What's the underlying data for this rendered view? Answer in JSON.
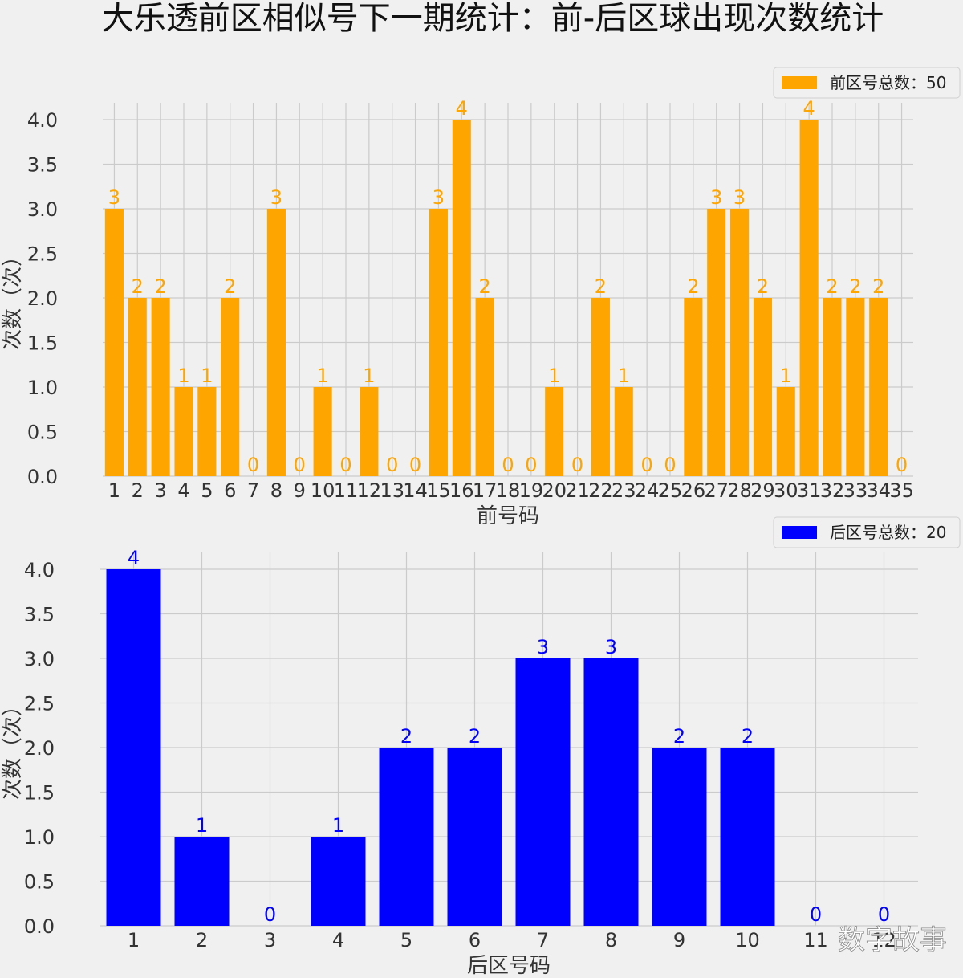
{
  "title": "大乐透前区相似号下一期统计：前-后区球出现次数统计",
  "watermark": "数字故事",
  "colors": {
    "front": "#ffa500",
    "back": "#0000ff",
    "grid": "#cbcbcb",
    "background": "#f0f0f0",
    "text": "#333333"
  },
  "chart_data": [
    {
      "type": "bar",
      "categories": [
        "1",
        "2",
        "3",
        "4",
        "5",
        "6",
        "7",
        "8",
        "9",
        "10",
        "11",
        "12",
        "13",
        "14",
        "15",
        "16",
        "17",
        "18",
        "19",
        "20",
        "21",
        "22",
        "23",
        "24",
        "25",
        "26",
        "27",
        "28",
        "29",
        "30",
        "31",
        "32",
        "33",
        "34",
        "35"
      ],
      "values": [
        3,
        2,
        2,
        1,
        1,
        2,
        0,
        3,
        0,
        1,
        0,
        1,
        0,
        0,
        3,
        4,
        2,
        0,
        0,
        1,
        0,
        2,
        1,
        0,
        0,
        2,
        3,
        3,
        2,
        1,
        4,
        2,
        2,
        2,
        0
      ],
      "data_labels": [
        "3",
        "2",
        "2",
        "1",
        "1",
        "2",
        "0",
        "3",
        "0",
        "1",
        "0",
        "1",
        "0",
        "0",
        "3",
        "4",
        "2",
        "0",
        "0",
        "1",
        "0",
        "2",
        "1",
        "0",
        "0",
        "2",
        "3",
        "3",
        "2",
        "1",
        "4",
        "2",
        "2",
        "2",
        "0"
      ],
      "xlabel": "前号码",
      "ylabel": "次数（次）",
      "ylim": [
        0,
        4
      ],
      "yticks": [
        "0.0",
        "0.5",
        "1.0",
        "1.5",
        "2.0",
        "2.5",
        "3.0",
        "3.5",
        "4.0"
      ],
      "legend": "前区号总数：50",
      "legend_position": "top-right",
      "grid": true,
      "color": "#ffa500"
    },
    {
      "type": "bar",
      "categories": [
        "1",
        "2",
        "3",
        "4",
        "5",
        "6",
        "7",
        "8",
        "9",
        "10",
        "11",
        "12"
      ],
      "values": [
        4,
        1,
        0,
        1,
        2,
        2,
        3,
        3,
        2,
        2,
        0,
        0
      ],
      "data_labels": [
        "4",
        "1",
        "0",
        "1",
        "2",
        "2",
        "3",
        "3",
        "2",
        "2",
        "0",
        "0"
      ],
      "xlabel": "后区号码",
      "ylabel": "次数（次）",
      "ylim": [
        0,
        4
      ],
      "yticks": [
        "0.0",
        "0.5",
        "1.0",
        "1.5",
        "2.0",
        "2.5",
        "3.0",
        "3.5",
        "4.0"
      ],
      "legend": "后区号总数：20",
      "legend_position": "top-right",
      "grid": true,
      "color": "#0000ff"
    }
  ]
}
